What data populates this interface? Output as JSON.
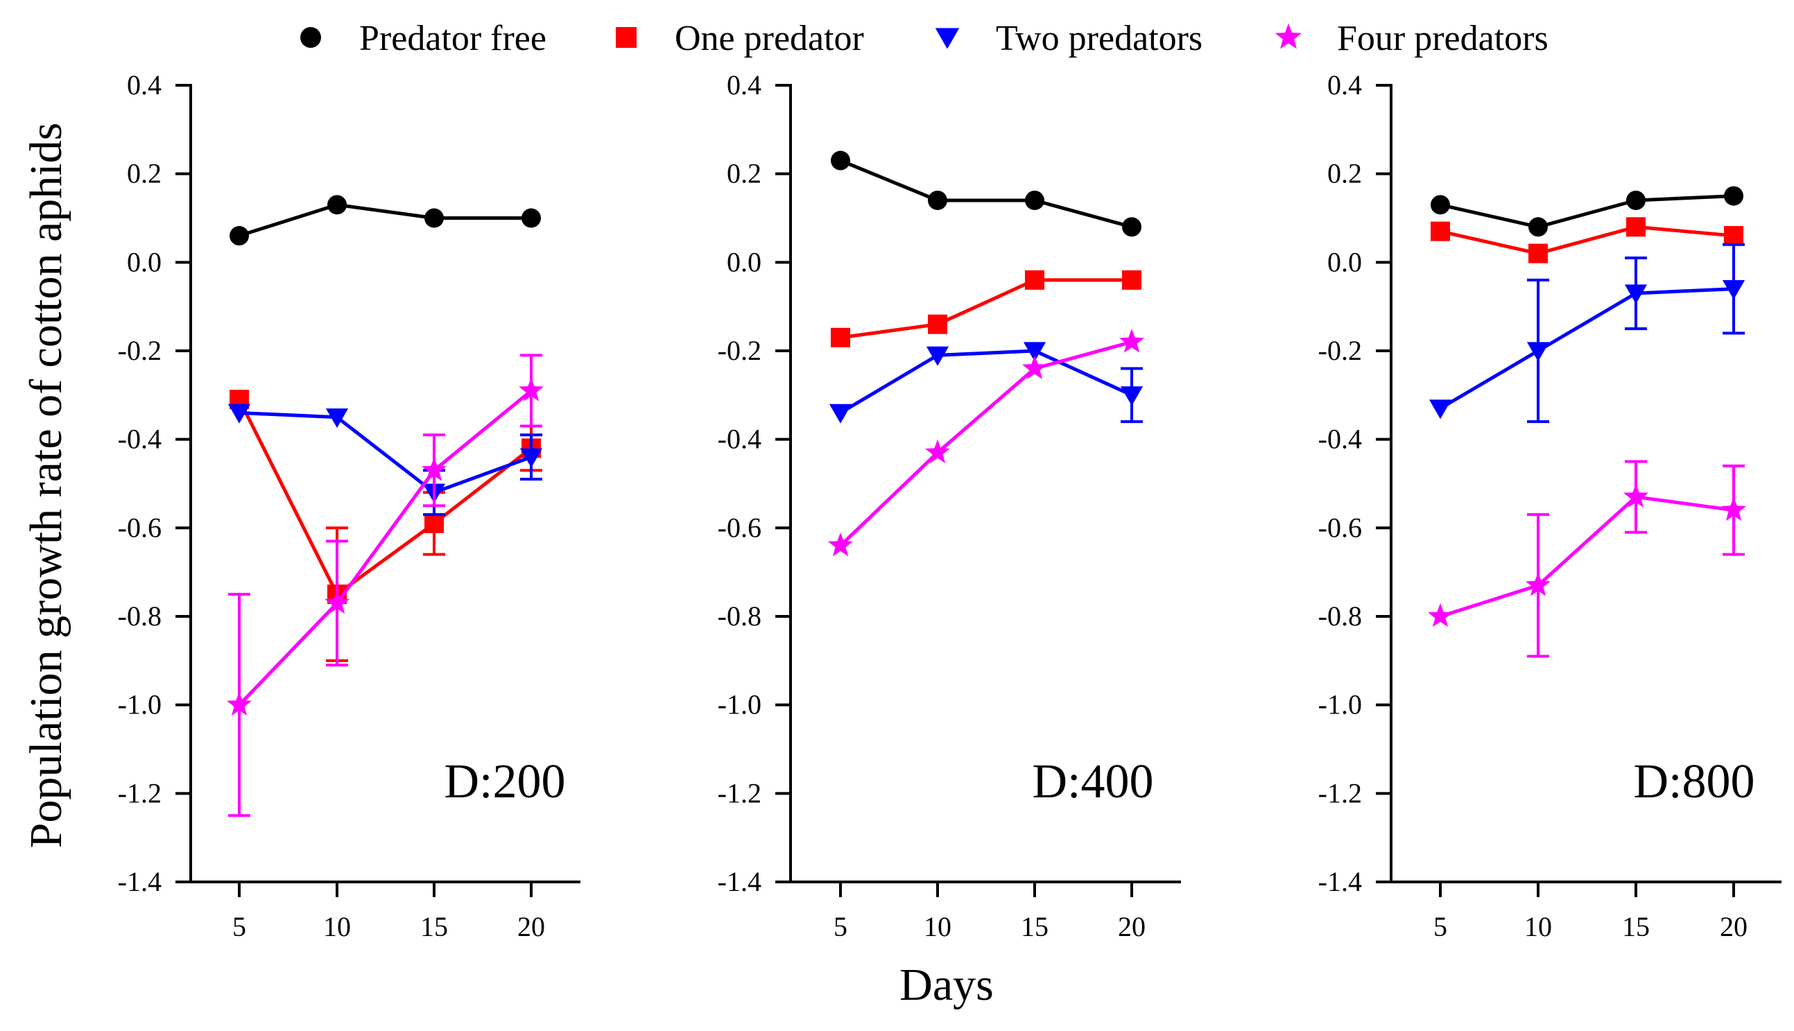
{
  "chart_data": {
    "type": "line",
    "ylabel": "Population growth rate of cotton aphids",
    "xlabel": "Days",
    "x": [
      5,
      10,
      15,
      20
    ],
    "x_ticks": [
      "5",
      "10",
      "15",
      "20"
    ],
    "ylim": [
      -1.4,
      0.4
    ],
    "y_ticks": [
      "0.4",
      "0.2",
      "0.0",
      "-0.2",
      "-0.4",
      "-0.6",
      "-0.8",
      "-1.0",
      "-1.2",
      "-1.4"
    ],
    "y_tick_values": [
      0.4,
      0.2,
      0.0,
      -0.2,
      -0.4,
      -0.6,
      -0.8,
      -1.0,
      -1.2,
      -1.4
    ],
    "legend": [
      {
        "name": "Predator free",
        "color": "#000000",
        "marker": "circle"
      },
      {
        "name": "One predator",
        "color": "#ff0000",
        "marker": "square"
      },
      {
        "name": "Two predators",
        "color": "#0000ff",
        "marker": "triangle-down"
      },
      {
        "name": "Four predators",
        "color": "#ff00ff",
        "marker": "star"
      }
    ],
    "panels": [
      {
        "label": "D:200",
        "series": [
          {
            "name": "Predator free",
            "values": [
              0.06,
              0.13,
              0.1,
              0.1
            ],
            "errors": [
              0,
              0,
              0,
              0
            ]
          },
          {
            "name": "One predator",
            "values": [
              -0.31,
              -0.75,
              -0.59,
              -0.42
            ],
            "errors": [
              0,
              0.15,
              0.07,
              0.05
            ]
          },
          {
            "name": "Two predators",
            "values": [
              -0.34,
              -0.35,
              -0.52,
              -0.44
            ],
            "errors": [
              0,
              0,
              0.05,
              0.05
            ]
          },
          {
            "name": "Four predators",
            "values": [
              -1.0,
              -0.77,
              -0.47,
              -0.29
            ],
            "errors": [
              0.25,
              0.14,
              0.08,
              0.08
            ]
          }
        ]
      },
      {
        "label": "D:400",
        "series": [
          {
            "name": "Predator free",
            "values": [
              0.23,
              0.14,
              0.14,
              0.08
            ],
            "errors": [
              0,
              0,
              0,
              0
            ]
          },
          {
            "name": "One predator",
            "values": [
              -0.17,
              -0.14,
              -0.04,
              -0.04
            ],
            "errors": [
              0,
              0,
              0,
              0
            ]
          },
          {
            "name": "Two predators",
            "values": [
              -0.34,
              -0.21,
              -0.2,
              -0.3
            ],
            "errors": [
              0,
              0,
              0,
              0.06
            ]
          },
          {
            "name": "Four predators",
            "values": [
              -0.64,
              -0.43,
              -0.24,
              -0.18
            ],
            "errors": [
              0,
              0,
              0,
              0
            ]
          }
        ]
      },
      {
        "label": "D:800",
        "series": [
          {
            "name": "Predator free",
            "values": [
              0.13,
              0.08,
              0.14,
              0.15
            ],
            "errors": [
              0,
              0,
              0,
              0
            ]
          },
          {
            "name": "One predator",
            "values": [
              0.07,
              0.02,
              0.08,
              0.06
            ],
            "errors": [
              0,
              0,
              0,
              0
            ]
          },
          {
            "name": "Two predators",
            "values": [
              -0.33,
              -0.2,
              -0.07,
              -0.06
            ],
            "errors": [
              0,
              0.16,
              0.08,
              0.1
            ]
          },
          {
            "name": "Four predators",
            "values": [
              -0.8,
              -0.73,
              -0.53,
              -0.56
            ],
            "errors": [
              0,
              0.16,
              0.08,
              0.1
            ]
          }
        ]
      }
    ]
  }
}
